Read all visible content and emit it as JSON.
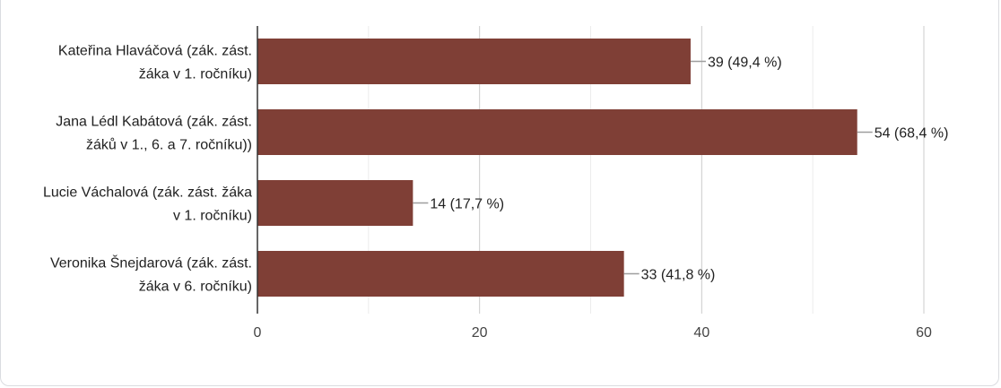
{
  "chart_data": {
    "type": "bar",
    "orientation": "horizontal",
    "categories": [
      [
        "Kateřina Hlaváčová (zák. zást.",
        "žáka v 1. ročníku)"
      ],
      [
        "Jana Lédl Kabátová (zák. zást.",
        "žáků v 1., 6. a 7. ročníku))"
      ],
      [
        "Lucie Váchalová (zák. zást. žáka",
        "v 1. ročníku)"
      ],
      [
        "Veronika Šnejdarová (zák. zást.",
        "žáka v 6. ročníku)"
      ]
    ],
    "values": [
      39,
      54,
      14,
      33
    ],
    "data_labels": [
      "39 (49,4 %)",
      "54 (68,4 %)",
      "14 (17,7 %)",
      "33 (41,8 %)"
    ],
    "xlim": [
      0,
      60
    ],
    "xticks": [
      0,
      20,
      40,
      60
    ],
    "xtick_labels": [
      "0",
      "20",
      "40",
      "60"
    ],
    "minor_gridlines": [
      10,
      30,
      50
    ],
    "grid": true,
    "bar_color": "#7f3f36"
  }
}
